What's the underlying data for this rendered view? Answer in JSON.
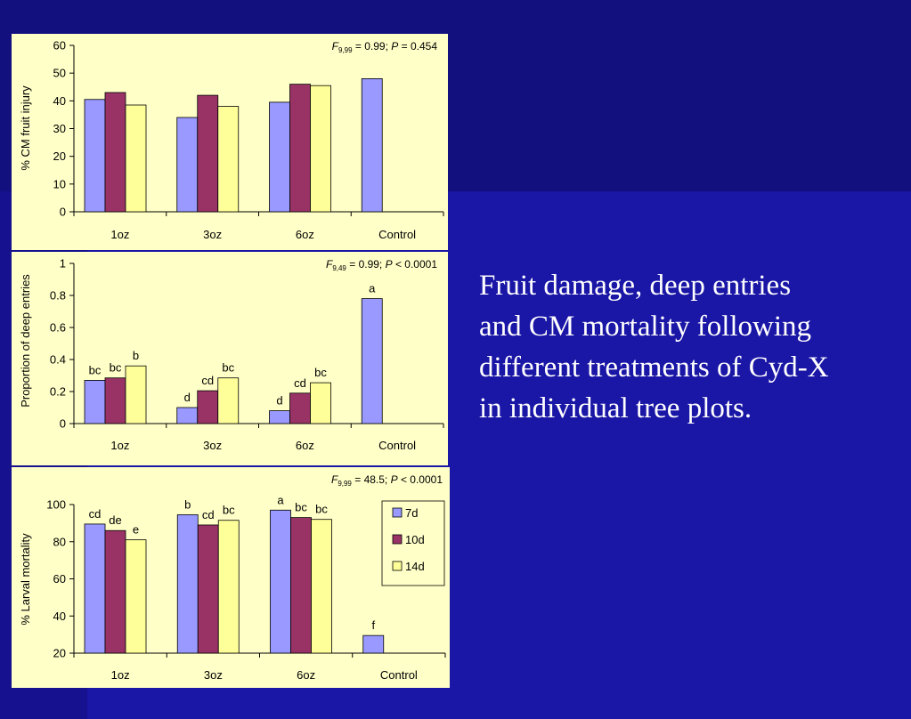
{
  "caption": "Fruit damage, deep entries\nand CM mortality following\ndifferent treatments of Cyd-X\nin individual tree plots.",
  "colors": {
    "7d": "#9999ff",
    "10d": "#993366",
    "14d": "#ffff99",
    "panel": "#ffffc8",
    "background": "#1a16a6"
  },
  "chart_data": [
    {
      "type": "bar",
      "categories": [
        "1oz",
        "3oz",
        "6oz",
        "Control"
      ],
      "series": [
        {
          "name": "7d",
          "values": [
            40.5,
            34,
            39.5,
            48
          ]
        },
        {
          "name": "10d",
          "values": [
            43,
            42,
            46,
            null
          ]
        },
        {
          "name": "14d",
          "values": [
            38.5,
            38,
            45.5,
            null
          ]
        }
      ],
      "ylabel": "% CM fruit injury",
      "ylim": [
        0,
        60
      ],
      "yticks": [
        "0",
        "10",
        "20",
        "30",
        "40",
        "50",
        "60"
      ],
      "stat": {
        "F": "F",
        "df": "9,99",
        "rest": " = 0.99; ",
        "P": "P",
        "ptext": " = 0.454"
      }
    },
    {
      "type": "bar",
      "categories": [
        "1oz",
        "3oz",
        "6oz",
        "Control"
      ],
      "series": [
        {
          "name": "7d",
          "values": [
            0.27,
            0.1,
            0.08,
            0.78
          ],
          "labels": [
            "bc",
            "d",
            "d",
            "a"
          ]
        },
        {
          "name": "10d",
          "values": [
            0.285,
            0.205,
            0.19,
            null
          ],
          "labels": [
            "bc",
            "cd",
            "cd",
            ""
          ]
        },
        {
          "name": "14d",
          "values": [
            0.36,
            0.285,
            0.255,
            null
          ],
          "labels": [
            "b",
            "bc",
            "bc",
            ""
          ]
        }
      ],
      "ylabel": "Proportion of deep entries",
      "ylim": [
        0,
        1
      ],
      "yticks": [
        "0",
        "0.2",
        "0.4",
        "0.6",
        "0.8",
        "1"
      ],
      "stat": {
        "F": "F",
        "df": "9,49",
        "rest": " = 0.99; ",
        "P": "P",
        "ptext": " < 0.0001"
      }
    },
    {
      "type": "bar",
      "categories": [
        "1oz",
        "3oz",
        "6oz",
        "Control"
      ],
      "series": [
        {
          "name": "7d",
          "values": [
            89.5,
            94.5,
            97,
            29.5
          ],
          "labels": [
            "cd",
            "b",
            "a",
            "f"
          ]
        },
        {
          "name": "10d",
          "values": [
            86,
            89,
            93,
            null
          ],
          "labels": [
            "de",
            "cd",
            "bc",
            ""
          ]
        },
        {
          "name": "14d",
          "values": [
            81,
            91.5,
            92,
            null
          ],
          "labels": [
            "e",
            "bc",
            "bc",
            ""
          ]
        }
      ],
      "ylabel": "% Larval mortality",
      "ylim": [
        20,
        100
      ],
      "yticks": [
        "20",
        "40",
        "60",
        "80",
        "100"
      ],
      "legend": [
        "7d",
        "10d",
        "14d"
      ],
      "legend_position": "top-right",
      "stat": {
        "F": "F",
        "df": "9,99",
        "rest": " = 48.5; ",
        "P": "P",
        "ptext": " < 0.0001"
      }
    }
  ]
}
